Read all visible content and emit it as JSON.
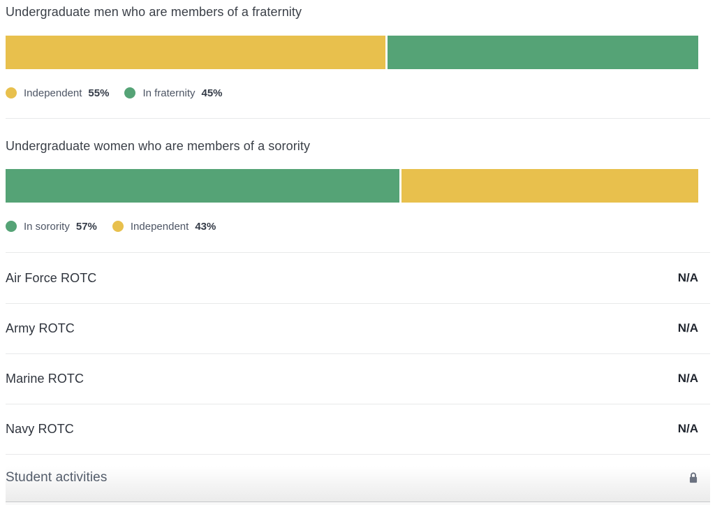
{
  "colors": {
    "independent_yellow": "#e8c04d",
    "greek_green": "#55a376",
    "divider": "#e8e9ea",
    "lock_gray": "#6b7280"
  },
  "chart_data": [
    {
      "type": "bar",
      "variant": "horizontal-stacked-100pct",
      "title": "Undergraduate men who are members of a fraternity",
      "xlim": [
        0,
        100
      ],
      "axis_visible": false,
      "legend_position": "bottom-left",
      "series": [
        {
          "name": "Independent",
          "value": 55,
          "label": "55%",
          "color": "#e8c04d"
        },
        {
          "name": "In fraternity",
          "value": 45,
          "label": "45%",
          "color": "#55a376"
        }
      ]
    },
    {
      "type": "bar",
      "variant": "horizontal-stacked-100pct",
      "title": "Undergraduate women who are members of a sorority",
      "xlim": [
        0,
        100
      ],
      "axis_visible": false,
      "legend_position": "bottom-left",
      "series": [
        {
          "name": "In sorority",
          "value": 57,
          "label": "57%",
          "color": "#55a376"
        },
        {
          "name": "Independent",
          "value": 43,
          "label": "43%",
          "color": "#e8c04d"
        }
      ]
    },
    {
      "type": "table",
      "rows": [
        {
          "label": "Air Force ROTC",
          "value": "N/A"
        },
        {
          "label": "Army ROTC",
          "value": "N/A"
        },
        {
          "label": "Marine ROTC",
          "value": "N/A"
        },
        {
          "label": "Navy ROTC",
          "value": "N/A"
        }
      ]
    }
  ],
  "locked_section": {
    "label": "Student activities",
    "icon": "lock-icon"
  }
}
